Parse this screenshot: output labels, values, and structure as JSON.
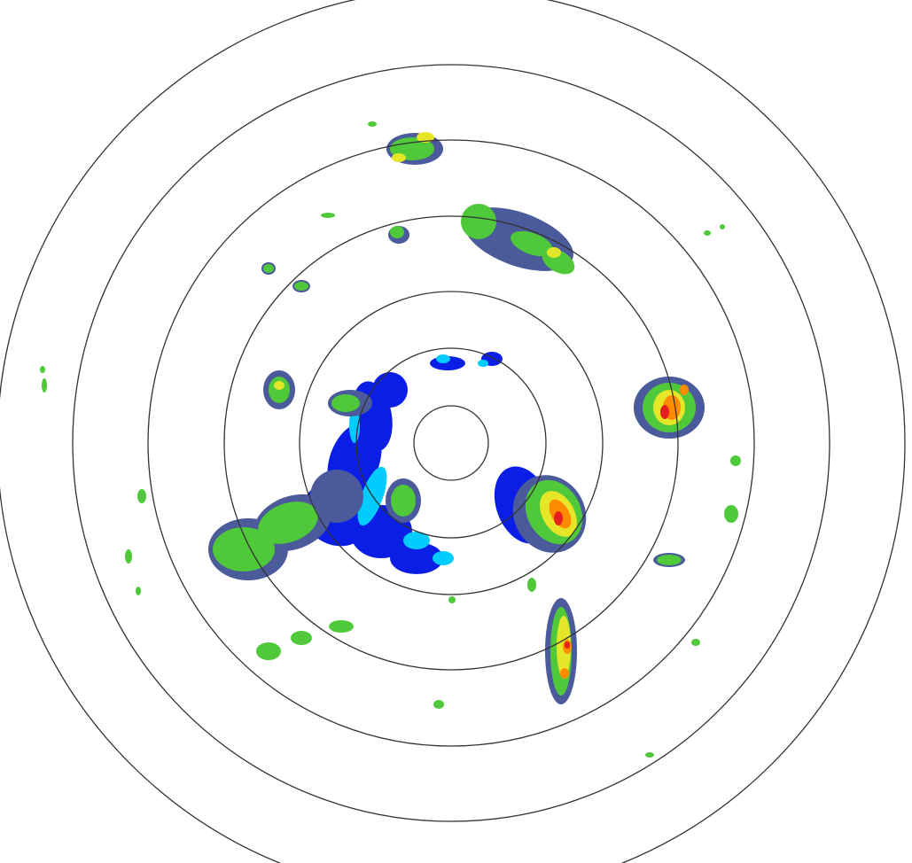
{
  "radar": {
    "range_ring_count": 7,
    "colors": {
      "background": "#ffffff",
      "ring": "#333333",
      "light_blue": "#00ccff",
      "blue": "#0a1ee6",
      "slate": "#4a5a9a",
      "dark_green": "#2e8b2e",
      "green": "#4fc83a",
      "yellow": "#e6e628",
      "orange": "#ff8c00",
      "red": "#e61e1e"
    }
  }
}
